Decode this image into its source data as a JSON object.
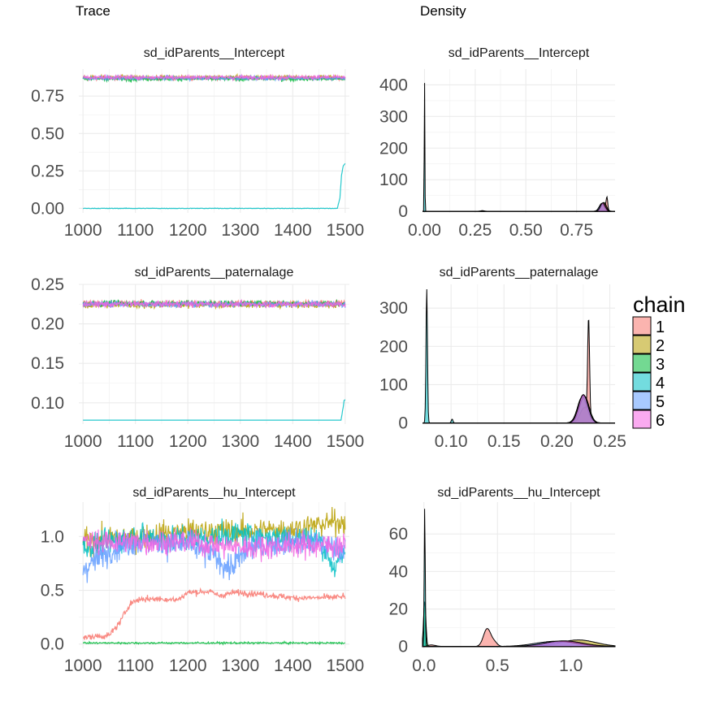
{
  "headers": {
    "trace": "Trace",
    "density": "Density"
  },
  "legend": {
    "title": "chain",
    "items": [
      {
        "label": "1",
        "color": "#F8766D"
      },
      {
        "label": "2",
        "color": "#B79F00"
      },
      {
        "label": "3",
        "color": "#00BA38"
      },
      {
        "label": "4",
        "color": "#00BFC4"
      },
      {
        "label": "5",
        "color": "#619CFF"
      },
      {
        "label": "6",
        "color": "#F564E3"
      }
    ]
  },
  "chart_data": [
    {
      "type": "line",
      "panel": "trace",
      "title": "sd_idParents__Intercept",
      "xlim": [
        992,
        1508
      ],
      "ylim": [
        -0.03,
        0.93
      ],
      "xticks": [
        1000,
        1100,
        1200,
        1300,
        1400,
        1500
      ],
      "yticks": [
        0.0,
        0.25,
        0.5,
        0.75
      ],
      "ytick_labels": [
        "0.00",
        "0.25",
        "0.50",
        "0.75"
      ],
      "series": [
        {
          "chain": "1",
          "kind": "flat",
          "level": 0.87,
          "noise": 0.014
        },
        {
          "chain": "2",
          "kind": "flat",
          "level": 0.875,
          "noise": 0.014
        },
        {
          "chain": "3",
          "kind": "flat",
          "level": 0.865,
          "noise": 0.014
        },
        {
          "chain": "4",
          "kind": "step",
          "points": [
            [
              1000,
              0.0
            ],
            [
              1485,
              0.0
            ],
            [
              1490,
              0.07
            ],
            [
              1493,
              0.22
            ],
            [
              1496,
              0.28
            ],
            [
              1500,
              0.3
            ]
          ],
          "noise": 0.002
        },
        {
          "chain": "5",
          "kind": "flat",
          "level": 0.87,
          "noise": 0.014
        },
        {
          "chain": "6",
          "kind": "flat",
          "level": 0.875,
          "noise": 0.014
        }
      ]
    },
    {
      "type": "area",
      "panel": "density",
      "title": "sd_idParents__Intercept",
      "xlim": [
        -0.01,
        0.94
      ],
      "ylim": [
        -5,
        450
      ],
      "xticks": [
        0.0,
        0.25,
        0.5,
        0.75
      ],
      "xtick_labels": [
        "0.00",
        "0.25",
        "0.50",
        "0.75"
      ],
      "yticks": [
        0,
        100,
        200,
        300,
        400
      ],
      "series": [
        {
          "chain": "1",
          "peaks": [
            [
              0.88,
              25,
              0.012
            ],
            [
              0.9,
              40,
              0.004
            ]
          ]
        },
        {
          "chain": "2",
          "peaks": [
            [
              0.885,
              28,
              0.012
            ]
          ]
        },
        {
          "chain": "3",
          "peaks": [
            [
              0.88,
              26,
              0.012
            ]
          ]
        },
        {
          "chain": "4",
          "peaks": [
            [
              0.0,
              435,
              0.0015
            ],
            [
              0.285,
              2,
              0.01
            ]
          ]
        },
        {
          "chain": "5",
          "peaks": [
            [
              0.875,
              25,
              0.013
            ]
          ]
        },
        {
          "chain": "6",
          "peaks": [
            [
              0.88,
              27,
              0.012
            ]
          ]
        }
      ]
    },
    {
      "type": "line",
      "panel": "trace",
      "title": "sd_idParents__paternalage",
      "xlim": [
        992,
        1508
      ],
      "ylim": [
        0.073,
        0.25
      ],
      "xticks": [
        1000,
        1100,
        1200,
        1300,
        1400,
        1500
      ],
      "yticks": [
        0.1,
        0.15,
        0.2,
        0.25
      ],
      "ytick_labels": [
        "0.10",
        "0.15",
        "0.20",
        "0.25"
      ],
      "series": [
        {
          "chain": "1",
          "kind": "flat",
          "level": 0.226,
          "noise": 0.004
        },
        {
          "chain": "2",
          "kind": "flat",
          "level": 0.224,
          "noise": 0.004
        },
        {
          "chain": "3",
          "kind": "flat",
          "level": 0.226,
          "noise": 0.004
        },
        {
          "chain": "4",
          "kind": "step",
          "points": [
            [
              1000,
              0.077
            ],
            [
              1492,
              0.077
            ],
            [
              1495,
              0.09
            ],
            [
              1498,
              0.103
            ],
            [
              1500,
              0.104
            ]
          ],
          "noise": 0.0006
        },
        {
          "chain": "5",
          "kind": "flat",
          "level": 0.225,
          "noise": 0.004
        },
        {
          "chain": "6",
          "kind": "flat",
          "level": 0.225,
          "noise": 0.004
        }
      ]
    },
    {
      "type": "area",
      "panel": "density",
      "title": "sd_idParents__paternalage",
      "xlim": [
        0.073,
        0.255
      ],
      "ylim": [
        -3,
        362
      ],
      "xticks": [
        0.1,
        0.15,
        0.2,
        0.25
      ],
      "xtick_labels": [
        "0.10",
        "0.15",
        "0.20",
        "0.25"
      ],
      "yticks": [
        0,
        100,
        200,
        300
      ],
      "series": [
        {
          "chain": "1",
          "peaks": [
            [
              0.23,
              253,
              0.0009
            ],
            [
              0.226,
              40,
              0.004
            ]
          ]
        },
        {
          "chain": "2",
          "peaks": [
            [
              0.224,
              68,
              0.0045
            ]
          ]
        },
        {
          "chain": "3",
          "peaks": [
            [
              0.226,
              70,
              0.0045
            ]
          ]
        },
        {
          "chain": "4",
          "peaks": [
            [
              0.077,
              350,
              0.0007
            ],
            [
              0.101,
              10,
              0.0008
            ]
          ]
        },
        {
          "chain": "5",
          "peaks": [
            [
              0.225,
              72,
              0.0045
            ]
          ]
        },
        {
          "chain": "6",
          "peaks": [
            [
              0.225,
              74,
              0.0045
            ]
          ]
        }
      ]
    },
    {
      "type": "line",
      "panel": "trace",
      "title": "sd_idParents__hu_Intercept",
      "xlim": [
        992,
        1508
      ],
      "ylim": [
        -0.04,
        1.32
      ],
      "xticks": [
        1000,
        1100,
        1200,
        1300,
        1400,
        1500
      ],
      "yticks": [
        0.0,
        0.5,
        1.0
      ],
      "ytick_labels": [
        "0.0",
        "0.5",
        "1.0"
      ],
      "series": [
        {
          "chain": "1",
          "kind": "path",
          "points": [
            [
              1000,
              0.06
            ],
            [
              1050,
              0.08
            ],
            [
              1070,
              0.2
            ],
            [
              1090,
              0.38
            ],
            [
              1110,
              0.42
            ],
            [
              1150,
              0.42
            ],
            [
              1180,
              0.41
            ],
            [
              1200,
              0.48
            ],
            [
              1240,
              0.49
            ],
            [
              1260,
              0.45
            ],
            [
              1290,
              0.48
            ],
            [
              1330,
              0.47
            ],
            [
              1400,
              0.43
            ],
            [
              1450,
              0.43
            ],
            [
              1500,
              0.44
            ]
          ],
          "noise": 0.03
        },
        {
          "chain": "2",
          "kind": "path",
          "points": [
            [
              1000,
              0.95
            ],
            [
              1100,
              1.0
            ],
            [
              1200,
              1.05
            ],
            [
              1300,
              1.05
            ],
            [
              1400,
              1.07
            ],
            [
              1500,
              1.15
            ]
          ],
          "noise": 0.12
        },
        {
          "chain": "3",
          "kind": "flat",
          "level": 0.01,
          "noise": 0.009
        },
        {
          "chain": "4",
          "kind": "path",
          "points": [
            [
              1000,
              0.9
            ],
            [
              1100,
              1.0
            ],
            [
              1200,
              0.98
            ],
            [
              1300,
              1.02
            ],
            [
              1450,
              0.98
            ],
            [
              1480,
              0.7
            ],
            [
              1500,
              0.85
            ]
          ],
          "noise": 0.12
        },
        {
          "chain": "5",
          "kind": "path",
          "points": [
            [
              1000,
              0.7
            ],
            [
              1060,
              0.9
            ],
            [
              1100,
              0.95
            ],
            [
              1200,
              0.92
            ],
            [
              1250,
              0.82
            ],
            [
              1280,
              0.7
            ],
            [
              1320,
              0.9
            ],
            [
              1400,
              0.95
            ],
            [
              1500,
              0.9
            ]
          ],
          "noise": 0.13
        },
        {
          "chain": "6",
          "kind": "path",
          "points": [
            [
              1000,
              0.95
            ],
            [
              1100,
              0.95
            ],
            [
              1200,
              0.95
            ],
            [
              1300,
              0.9
            ],
            [
              1400,
              0.92
            ],
            [
              1500,
              0.92
            ]
          ],
          "noise": 0.12
        }
      ]
    },
    {
      "type": "area",
      "panel": "density",
      "title": "sd_idParents__hu_Intercept",
      "xlim": [
        -0.01,
        1.3
      ],
      "ylim": [
        -1,
        77
      ],
      "xticks": [
        0.0,
        0.5,
        1.0
      ],
      "xtick_labels": [
        "0.0",
        "0.5",
        "1.0"
      ],
      "yticks": [
        0,
        20,
        40,
        60
      ],
      "series": [
        {
          "chain": "1",
          "peaks": [
            [
              0.43,
              9.5,
              0.025
            ],
            [
              0.48,
              2,
              0.02
            ],
            [
              0.05,
              0.8,
              0.03
            ]
          ]
        },
        {
          "chain": "2",
          "peaks": [
            [
              1.05,
              3.5,
              0.12
            ]
          ]
        },
        {
          "chain": "3",
          "peaks": [
            [
              0.005,
              24,
              0.008
            ]
          ]
        },
        {
          "chain": "4",
          "peaks": [
            [
              0.005,
              74,
              0.0035
            ],
            [
              0.95,
              2.5,
              0.12
            ]
          ]
        },
        {
          "chain": "5",
          "peaks": [
            [
              0.9,
              2.8,
              0.14
            ]
          ]
        },
        {
          "chain": "6",
          "peaks": [
            [
              0.95,
              3,
              0.13
            ]
          ]
        }
      ]
    }
  ]
}
